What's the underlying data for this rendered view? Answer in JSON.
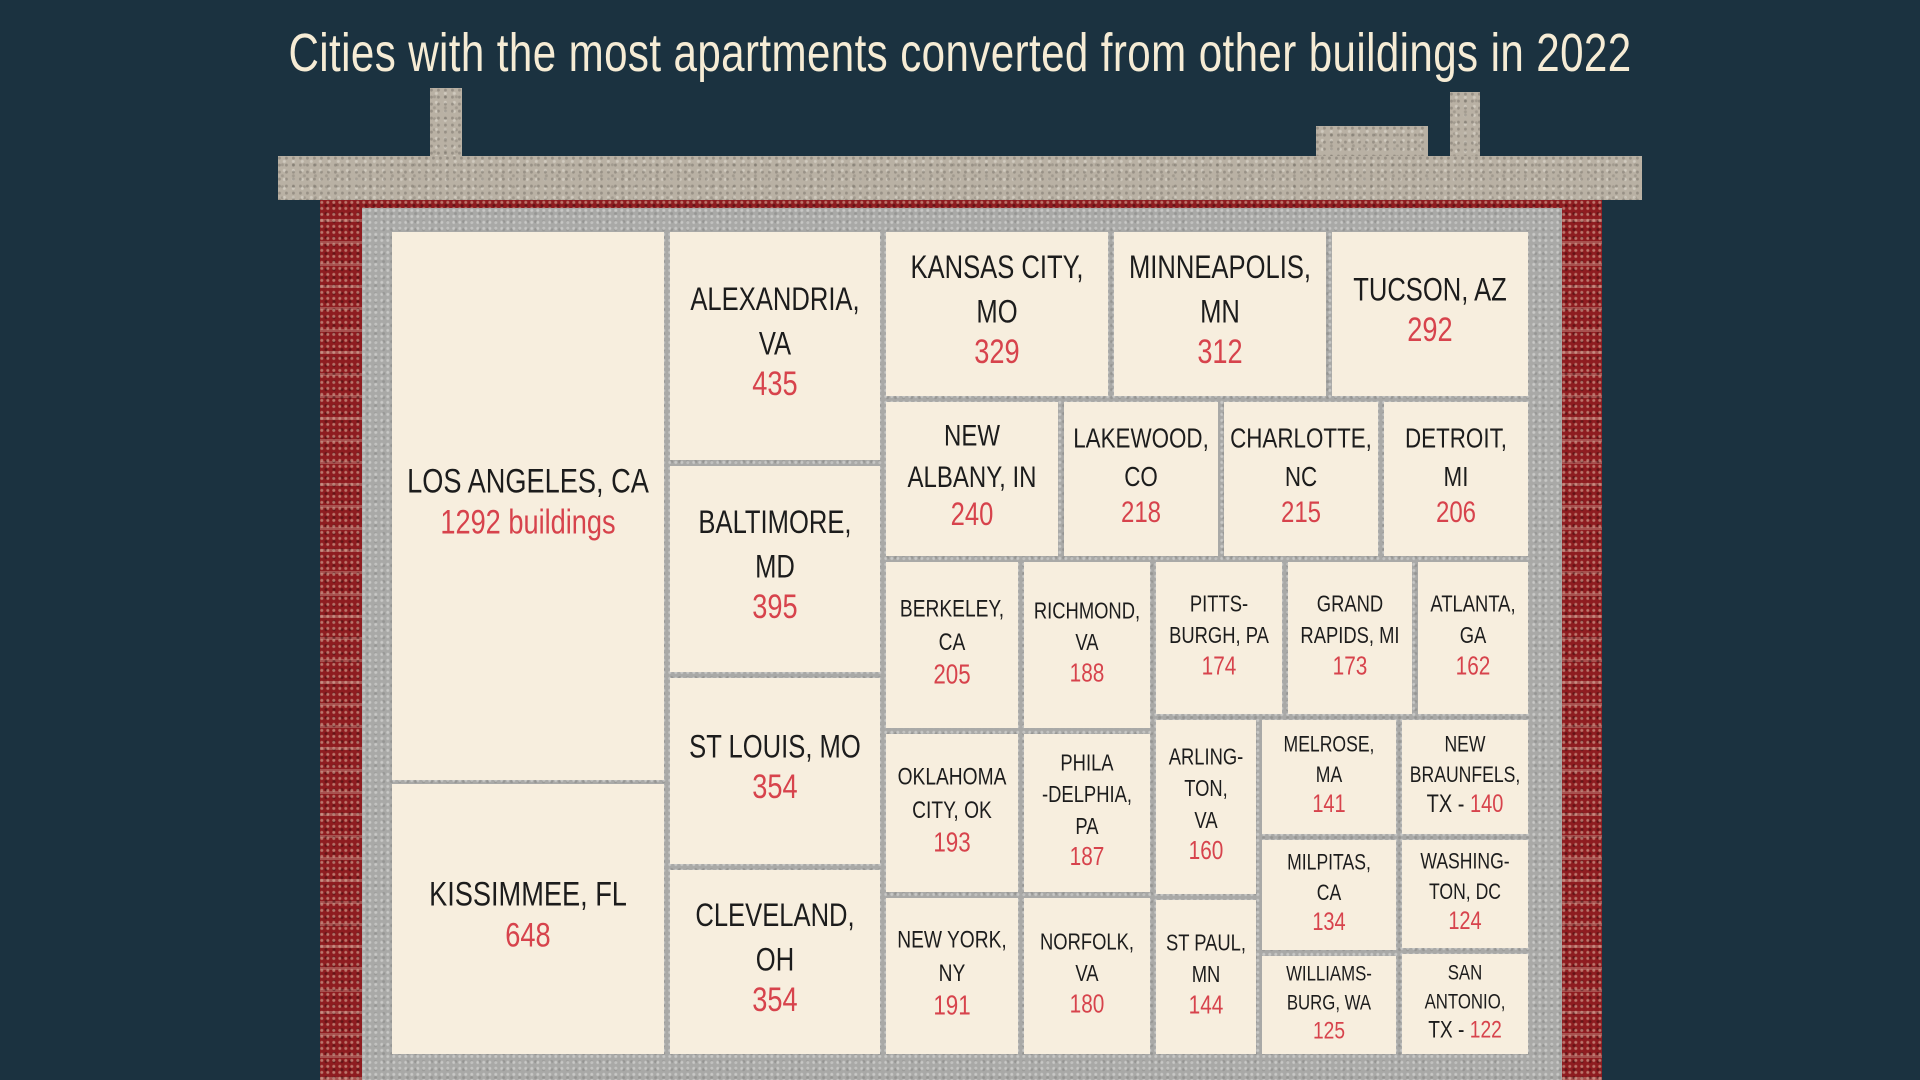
{
  "title": "Cities with the most apartments converted from other buildings in 2022",
  "colors": {
    "background": "#1b3240",
    "cell": "#f7eede",
    "label": "#1c1c1c",
    "value": "#d7434c",
    "brick": "#8e1c20",
    "stone": "#b9b1a4"
  },
  "chart_data": {
    "type": "treemap",
    "title": "Cities with the most apartments converted from other buildings in 2022",
    "items": [
      {
        "name": "LOS ANGELES, CA",
        "label_lines": [
          "LOS ANGELES, CA"
        ],
        "value_text": "1292 buildings",
        "value": 1292
      },
      {
        "name": "KISSIMMEE, FL",
        "label_lines": [
          "KISSIMMEE, FL"
        ],
        "value_text": "648",
        "value": 648
      },
      {
        "name": "ALEXANDRIA, VA",
        "label_lines": [
          "ALEXANDRIA,",
          "VA"
        ],
        "value_text": "435",
        "value": 435
      },
      {
        "name": "BALTIMORE, MD",
        "label_lines": [
          "BALTIMORE,",
          "MD"
        ],
        "value_text": "395",
        "value": 395
      },
      {
        "name": "ST LOUIS, MO",
        "label_lines": [
          "ST LOUIS, MO"
        ],
        "value_text": "354",
        "value": 354
      },
      {
        "name": "CLEVELAND, OH",
        "label_lines": [
          "CLEVELAND,",
          "OH"
        ],
        "value_text": "354",
        "value": 354
      },
      {
        "name": "KANSAS CITY, MO",
        "label_lines": [
          "KANSAS CITY,",
          "MO"
        ],
        "value_text": "329",
        "value": 329
      },
      {
        "name": "MINNEAPOLIS, MN",
        "label_lines": [
          "MINNEAPOLIS,",
          "MN"
        ],
        "value_text": "312",
        "value": 312
      },
      {
        "name": "TUCSON, AZ",
        "label_lines": [
          "TUCSON, AZ"
        ],
        "value_text": "292",
        "value": 292
      },
      {
        "name": "NEW ALBANY, IN",
        "label_lines": [
          "NEW",
          "ALBANY, IN"
        ],
        "value_text": "240",
        "value": 240
      },
      {
        "name": "LAKEWOOD, CO",
        "label_lines": [
          "LAKEWOOD,",
          "CO"
        ],
        "value_text": "218",
        "value": 218
      },
      {
        "name": "CHARLOTTE, NC",
        "label_lines": [
          "CHARLOTTE,",
          "NC"
        ],
        "value_text": "215",
        "value": 215
      },
      {
        "name": "DETROIT, MI",
        "label_lines": [
          "DETROIT,",
          "MI"
        ],
        "value_text": "206",
        "value": 206
      },
      {
        "name": "BERKELEY, CA",
        "label_lines": [
          "BERKELEY,",
          "CA"
        ],
        "value_text": "205",
        "value": 205
      },
      {
        "name": "RICHMOND, VA",
        "label_lines": [
          "RICHMOND,",
          "VA"
        ],
        "value_text": "188",
        "value": 188
      },
      {
        "name": "PITTSBURGH, PA",
        "label_lines": [
          "PITTS-",
          "BURGH, PA"
        ],
        "value_text": "174",
        "value": 174
      },
      {
        "name": "GRAND RAPIDS, MI",
        "label_lines": [
          "GRAND",
          "RAPIDS, MI"
        ],
        "value_text": "173",
        "value": 173
      },
      {
        "name": "ATLANTA, GA",
        "label_lines": [
          "ATLANTA,",
          "GA"
        ],
        "value_text": "162",
        "value": 162
      },
      {
        "name": "OKLAHOMA CITY, OK",
        "label_lines": [
          "OKLAHOMA",
          "CITY, OK"
        ],
        "value_text": "193",
        "value": 193
      },
      {
        "name": "PHILADELPHIA, PA",
        "label_lines": [
          "PHILA",
          "-DELPHIA,",
          "PA"
        ],
        "value_text": "187",
        "value": 187
      },
      {
        "name": "ARLINGTON, VA",
        "label_lines": [
          "ARLING-",
          "TON,",
          "VA"
        ],
        "value_text": "160",
        "value": 160
      },
      {
        "name": "MELROSE, MA",
        "label_lines": [
          "MELROSE,",
          "MA"
        ],
        "value_text": "141",
        "value": 141
      },
      {
        "name": "NEW BRAUNFELS, TX",
        "label_lines": [
          "NEW",
          "BRAUNFELS,"
        ],
        "prefix_text": "TX - ",
        "value_text": "140",
        "value": 140
      },
      {
        "name": "MILPITAS, CA",
        "label_lines": [
          "MILPITAS,",
          "CA"
        ],
        "value_text": "134",
        "value": 134
      },
      {
        "name": "WASHINGTON, DC",
        "label_lines": [
          "WASHING-",
          "TON, DC"
        ],
        "value_text": "124",
        "value": 124
      },
      {
        "name": "NEW YORK, NY",
        "label_lines": [
          "NEW YORK,",
          "NY"
        ],
        "value_text": "191",
        "value": 191
      },
      {
        "name": "NORFOLK, VA",
        "label_lines": [
          "NORFOLK,",
          "VA"
        ],
        "value_text": "180",
        "value": 180
      },
      {
        "name": "ST PAUL, MN",
        "label_lines": [
          "ST PAUL,",
          "MN"
        ],
        "value_text": "144",
        "value": 144
      },
      {
        "name": "WILLIAMSBURG, WA",
        "label_lines": [
          "WILLIAMS-",
          "BURG, WA"
        ],
        "value_text": "125",
        "value": 125
      },
      {
        "name": "SAN ANTONIO, TX",
        "label_lines": [
          "SAN",
          "ANTONIO,"
        ],
        "prefix_text": "TX - ",
        "value_text": "122",
        "value": 122
      }
    ]
  }
}
